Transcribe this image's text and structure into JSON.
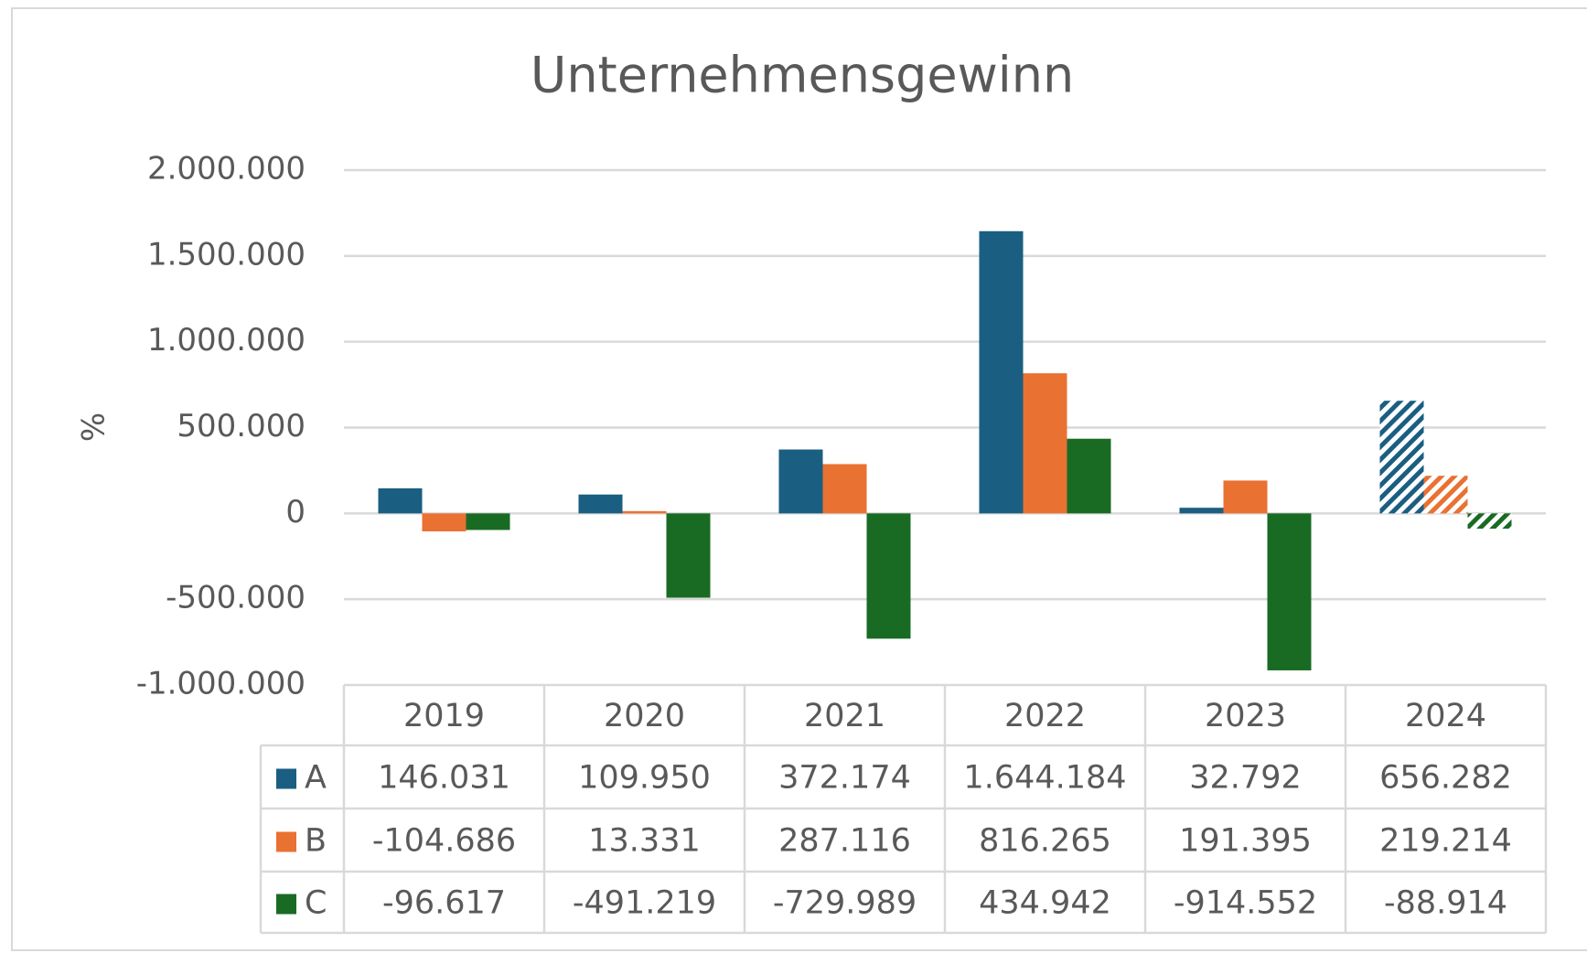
{
  "chart_data": {
    "type": "bar",
    "title": "Unternehmensgewinn",
    "y_label": "%",
    "categories": [
      "2019",
      "2020",
      "2021",
      "2022",
      "2023",
      "2024"
    ],
    "series": [
      {
        "name": "A",
        "color": "#1a5e82",
        "values": [
          146031,
          109950,
          372174,
          1644184,
          32792,
          656282
        ],
        "value_labels": [
          "146.031",
          "109.950",
          "372.174",
          "1.644.184",
          "32.792",
          "656.282"
        ]
      },
      {
        "name": "B",
        "color": "#e97132",
        "values": [
          -104686,
          13331,
          287116,
          816265,
          191395,
          219214
        ],
        "value_labels": [
          "-104.686",
          "13.331",
          "287.116",
          "816.265",
          "191.395",
          "219.214"
        ]
      },
      {
        "name": "C",
        "color": "#196b24",
        "values": [
          -96617,
          -491219,
          -729989,
          434942,
          -914552,
          -88914
        ],
        "value_labels": [
          "-96.617",
          "-491.219",
          "-729.989",
          "434.942",
          "-914.552",
          "-88.914"
        ]
      }
    ],
    "hatched": [
      false,
      false,
      false,
      false,
      false,
      true
    ],
    "ylim": [
      -1000000,
      2000000
    ],
    "yticks": [
      {
        "value": -1000000,
        "label": "-1.000.000"
      },
      {
        "value": -500000,
        "label": "-500.000"
      },
      0,
      {
        "value": 500000,
        "label": "500.000"
      },
      {
        "value": 1000000,
        "label": "1.000.000"
      },
      {
        "value": 1500000,
        "label": "1.500.000"
      },
      {
        "value": 2000000,
        "label": "2.000.000"
      }
    ],
    "grid": true
  }
}
